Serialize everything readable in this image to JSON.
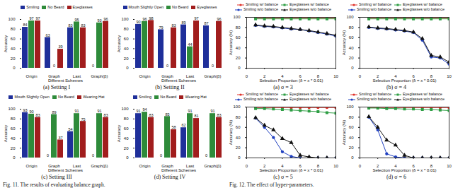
{
  "chart_data": [
    {
      "type": "bar",
      "title": "(a) Setting I",
      "x_label": "Different Schemes",
      "y_label": "Accuracy",
      "categories": [
        "Origin",
        "Graph",
        "Last",
        "Graph(β)"
      ],
      "series": [
        {
          "name": "Smiling",
          "color": "#1f2f9a",
          "values": [
            84,
            63,
            83,
            0
          ]
        },
        {
          "name": "No Beard",
          "color": "#2e8b3a",
          "values": [
            97,
            0,
            95,
            93
          ]
        },
        {
          "name": "Eyeglasses",
          "color": "#a11d1d",
          "values": [
            97,
            39,
            83,
            96
          ]
        }
      ],
      "ylim": [
        0,
        100
      ],
      "yticks": [
        0,
        20,
        40,
        60,
        80,
        100
      ],
      "grid": false,
      "data_labels": true
    },
    {
      "type": "bar",
      "title": "(b) Setting II",
      "x_label": "Different Schemes",
      "y_label": "Accuracy",
      "categories": [
        "Origin",
        "Graph",
        "Last",
        "Graph(β)"
      ],
      "series": [
        {
          "name": "Mouth Slightly Open",
          "color": "#1f2f9a",
          "values": [
            90,
            79,
            89,
            87
          ]
        },
        {
          "name": "No Beard",
          "color": "#2e8b3a",
          "values": [
            96,
            0,
            44,
            0
          ]
        },
        {
          "name": "Eyeglasses",
          "color": "#a11d1d",
          "values": [
            98,
            83,
            97,
            96
          ]
        }
      ],
      "ylim": [
        0,
        100
      ],
      "yticks": [
        0,
        20,
        40,
        60,
        80,
        100
      ],
      "grid": false,
      "data_labels": true
    },
    {
      "type": "bar",
      "title": "(c) Setting III",
      "x_label": "Different Schemes",
      "y_label": "Accuracy",
      "categories": [
        "Origin",
        "Graph",
        "Last",
        "Graph(β)"
      ],
      "series": [
        {
          "name": "Mouth Slightly Open",
          "color": "#1f2f9a",
          "values": [
            93,
            0,
            54,
            0
          ]
        },
        {
          "name": "No Beard",
          "color": "#2e8b3a",
          "values": [
            90,
            89,
            91,
            91
          ]
        },
        {
          "name": "Wearing Hat",
          "color": "#a11d1d",
          "values": [
            83,
            37,
            75,
            83
          ]
        }
      ],
      "ylim": [
        0,
        100
      ],
      "yticks": [
        0,
        20,
        40,
        60,
        80,
        100
      ],
      "grid": false,
      "data_labels": true
    },
    {
      "type": "bar",
      "title": "(d) Setting IV",
      "x_label": "Different Schemes",
      "y_label": "Accuracy",
      "categories": [
        "Origin",
        "Graph",
        "Last",
        "Graph(β)"
      ],
      "series": [
        {
          "name": "Smiling",
          "color": "#1f2f9a",
          "values": [
            91,
            0,
            62,
            0
          ]
        },
        {
          "name": "No Beard",
          "color": "#2e8b3a",
          "values": [
            94,
            85,
            91,
            91
          ]
        },
        {
          "name": "Wearing Hat",
          "color": "#a11d1d",
          "values": [
            83,
            58,
            81,
            83
          ]
        }
      ],
      "ylim": [
        0,
        100
      ],
      "yticks": [
        0,
        20,
        40,
        60,
        80,
        100
      ],
      "grid": false,
      "data_labels": true
    },
    {
      "type": "line",
      "title": "(a) σ = 3",
      "x_label": "Selection Proportion (δ = x * 0.01)",
      "y_label": "Accuracy (%)",
      "x": [
        1,
        2,
        3,
        4,
        5,
        6,
        7,
        8,
        9,
        10
      ],
      "series": [
        {
          "name": "Smiling w/ balance",
          "color": "#e0322a",
          "marker": "circle",
          "values": [
            99,
            99,
            99,
            99,
            99,
            99,
            99,
            99,
            99,
            99
          ]
        },
        {
          "name": "Eyeglasses w/ balance",
          "color": "#2e9e44",
          "marker": "square",
          "values": [
            97,
            97,
            97,
            97,
            97,
            97,
            97,
            97,
            97,
            97
          ]
        },
        {
          "name": "Smiling w/o balance",
          "color": "#2040c0",
          "marker": "circle",
          "values": [
            84,
            82,
            81,
            79,
            77,
            76,
            73,
            70,
            67,
            63
          ]
        },
        {
          "name": "Eyeglasses w/o balance",
          "color": "#111111",
          "marker": "triangle",
          "values": [
            85,
            83,
            82,
            80,
            78,
            76,
            74,
            71,
            68,
            65
          ]
        }
      ],
      "xlim": [
        0,
        10
      ],
      "xticks": [
        0,
        2,
        4,
        6,
        8,
        10
      ],
      "ylim": [
        0,
        100
      ],
      "yticks": [
        0,
        20,
        40,
        60,
        80,
        100
      ],
      "grid": false
    },
    {
      "type": "line",
      "title": "(b) σ = 4",
      "x_label": "Selection Proportion (δ = x * 0.01)",
      "y_label": "Accuracy (%)",
      "x": [
        1,
        2,
        3,
        4,
        5,
        6,
        7,
        8,
        9,
        10
      ],
      "series": [
        {
          "name": "Smiling w/ balance",
          "color": "#e0322a",
          "marker": "circle",
          "values": [
            99,
            99,
            99,
            99,
            99,
            99,
            99,
            99,
            99,
            99
          ]
        },
        {
          "name": "Eyeglasses w/ balance",
          "color": "#2e9e44",
          "marker": "square",
          "values": [
            97,
            97,
            97,
            97,
            97,
            97,
            97,
            97,
            97,
            97
          ]
        },
        {
          "name": "Smiling w/o balance",
          "color": "#2040c0",
          "marker": "circle",
          "values": [
            80,
            78,
            77,
            75,
            73,
            70,
            55,
            22,
            20,
            8
          ]
        },
        {
          "name": "Eyeglasses w/o balance",
          "color": "#111111",
          "marker": "triangle",
          "values": [
            81,
            79,
            78,
            76,
            74,
            71,
            58,
            25,
            22,
            12
          ]
        }
      ],
      "xlim": [
        0,
        10
      ],
      "xticks": [
        0,
        2,
        4,
        6,
        8,
        10
      ],
      "ylim": [
        0,
        100
      ],
      "yticks": [
        0,
        20,
        40,
        60,
        80,
        100
      ],
      "grid": false
    },
    {
      "type": "line",
      "title": "(c) σ = 5",
      "x_label": "Selection Proportion (δ = x * 0.01)",
      "y_label": "Accuracy (%)",
      "x": [
        1,
        2,
        3,
        4,
        5,
        6,
        7,
        8,
        9,
        10
      ],
      "series": [
        {
          "name": "Smiling w/ balance",
          "color": "#e0322a",
          "marker": "circle",
          "values": [
            99,
            99,
            99,
            99,
            99,
            99,
            99,
            99,
            99,
            99
          ]
        },
        {
          "name": "Eyeglasses w/ balance",
          "color": "#2e9e44",
          "marker": "square",
          "values": [
            97,
            97,
            96,
            95,
            94,
            93,
            92,
            91,
            89,
            88
          ]
        },
        {
          "name": "Smiling w/o balance",
          "color": "#2040c0",
          "marker": "circle",
          "values": [
            78,
            60,
            40,
            12,
            3,
            0,
            0,
            0,
            0,
            0
          ]
        },
        {
          "name": "Eyeglasses w/o balance",
          "color": "#111111",
          "marker": "triangle",
          "values": [
            79,
            64,
            55,
            38,
            30,
            5,
            2,
            0,
            0,
            0
          ]
        }
      ],
      "xlim": [
        0,
        10
      ],
      "xticks": [
        0,
        2,
        4,
        6,
        8,
        10
      ],
      "ylim": [
        0,
        100
      ],
      "yticks": [
        0,
        20,
        40,
        60,
        80,
        100
      ],
      "grid": false
    },
    {
      "type": "line",
      "title": "(d) σ = 6",
      "x_label": "Selection Proportion (δ = x * 0.01)",
      "y_label": "Accuracy (%)",
      "x": [
        1,
        2,
        3,
        4,
        5,
        6,
        7,
        8,
        9,
        10
      ],
      "series": [
        {
          "name": "Smiling w/ balance",
          "color": "#e0322a",
          "marker": "circle",
          "values": [
            99,
            99,
            99,
            99,
            99,
            99,
            99,
            99,
            99,
            99
          ]
        },
        {
          "name": "Eyeglasses w/ balance",
          "color": "#2e9e44",
          "marker": "square",
          "values": [
            98,
            98,
            97,
            97,
            96,
            96,
            95,
            95,
            94,
            93
          ]
        },
        {
          "name": "Smiling w/o balance",
          "color": "#2040c0",
          "marker": "circle",
          "values": [
            80,
            55,
            8,
            2,
            0,
            0,
            0,
            0,
            0,
            0
          ]
        },
        {
          "name": "Eyeglasses w/o balance",
          "color": "#111111",
          "marker": "triangle",
          "values": [
            81,
            60,
            35,
            25,
            5,
            0,
            0,
            0,
            0,
            0
          ]
        }
      ],
      "xlim": [
        0,
        10
      ],
      "xticks": [
        0,
        2,
        4,
        6,
        8,
        10
      ],
      "ylim": [
        0,
        100
      ],
      "yticks": [
        0,
        20,
        40,
        60,
        80,
        100
      ],
      "grid": false
    }
  ],
  "captions": [
    "Fig. 11.  The results of evaluating balance graph.",
    "Fig. 12.  The effect of hyper-parameters."
  ]
}
